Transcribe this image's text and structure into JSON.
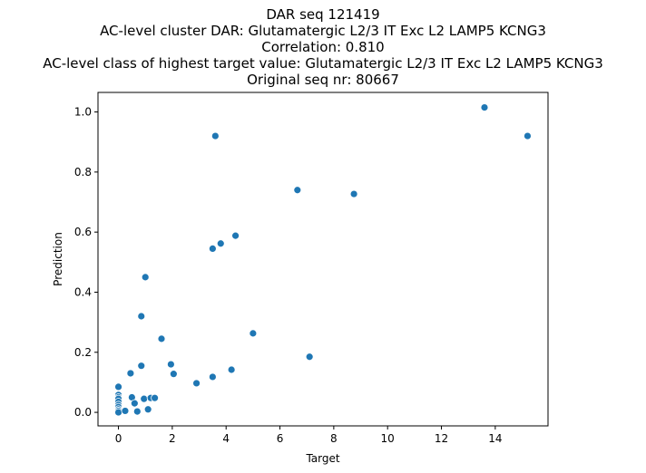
{
  "chart_data": {
    "type": "scatter",
    "title_lines": [
      "DAR seq 121419",
      "AC-level cluster DAR: Glutamatergic L2/3 IT Exc L2 LAMP5 KCNG3",
      "Correlation: 0.810",
      "AC-level class of highest target value: Glutamatergic L2/3 IT Exc L2 LAMP5 KCNG3",
      "Original seq nr: 80667"
    ],
    "xlabel": "Target",
    "ylabel": "Prediction",
    "xlim": [
      -0.76,
      15.96
    ],
    "ylim": [
      -0.045,
      1.065
    ],
    "xticks": [
      {
        "value": 0,
        "label": "0"
      },
      {
        "value": 2,
        "label": "2"
      },
      {
        "value": 4,
        "label": "4"
      },
      {
        "value": 6,
        "label": "6"
      },
      {
        "value": 8,
        "label": "8"
      },
      {
        "value": 10,
        "label": "10"
      },
      {
        "value": 12,
        "label": "12"
      },
      {
        "value": 14,
        "label": "14"
      }
    ],
    "yticks": [
      {
        "value": 0.0,
        "label": "0.0"
      },
      {
        "value": 0.2,
        "label": "0.2"
      },
      {
        "value": 0.4,
        "label": "0.4"
      },
      {
        "value": 0.6,
        "label": "0.6"
      },
      {
        "value": 0.8,
        "label": "0.8"
      },
      {
        "value": 1.0,
        "label": "1.0"
      }
    ],
    "grid": false,
    "point_color": "#1f77b4",
    "points": [
      {
        "x": 0.0,
        "y": 0.085
      },
      {
        "x": 0.0,
        "y": 0.058
      },
      {
        "x": 0.0,
        "y": 0.05
      },
      {
        "x": 0.0,
        "y": 0.045
      },
      {
        "x": 0.0,
        "y": 0.035
      },
      {
        "x": 0.0,
        "y": 0.025
      },
      {
        "x": 0.0,
        "y": 0.018
      },
      {
        "x": 0.0,
        "y": 0.01
      },
      {
        "x": 0.0,
        "y": 0.005
      },
      {
        "x": 0.0,
        "y": 0.0
      },
      {
        "x": 0.25,
        "y": 0.005
      },
      {
        "x": 0.45,
        "y": 0.13
      },
      {
        "x": 0.5,
        "y": 0.05
      },
      {
        "x": 0.6,
        "y": 0.03
      },
      {
        "x": 0.7,
        "y": 0.003
      },
      {
        "x": 0.85,
        "y": 0.155
      },
      {
        "x": 0.85,
        "y": 0.32
      },
      {
        "x": 0.95,
        "y": 0.045
      },
      {
        "x": 1.0,
        "y": 0.45
      },
      {
        "x": 1.1,
        "y": 0.01
      },
      {
        "x": 1.2,
        "y": 0.048
      },
      {
        "x": 1.35,
        "y": 0.048
      },
      {
        "x": 1.6,
        "y": 0.245
      },
      {
        "x": 1.95,
        "y": 0.16
      },
      {
        "x": 2.05,
        "y": 0.128
      },
      {
        "x": 2.9,
        "y": 0.097
      },
      {
        "x": 3.5,
        "y": 0.118
      },
      {
        "x": 3.5,
        "y": 0.545
      },
      {
        "x": 3.6,
        "y": 0.92
      },
      {
        "x": 3.8,
        "y": 0.562
      },
      {
        "x": 4.2,
        "y": 0.142
      },
      {
        "x": 4.35,
        "y": 0.588
      },
      {
        "x": 5.0,
        "y": 0.263
      },
      {
        "x": 6.65,
        "y": 0.74
      },
      {
        "x": 7.1,
        "y": 0.185
      },
      {
        "x": 8.75,
        "y": 0.727
      },
      {
        "x": 13.6,
        "y": 1.015
      },
      {
        "x": 15.2,
        "y": 0.92
      }
    ]
  }
}
